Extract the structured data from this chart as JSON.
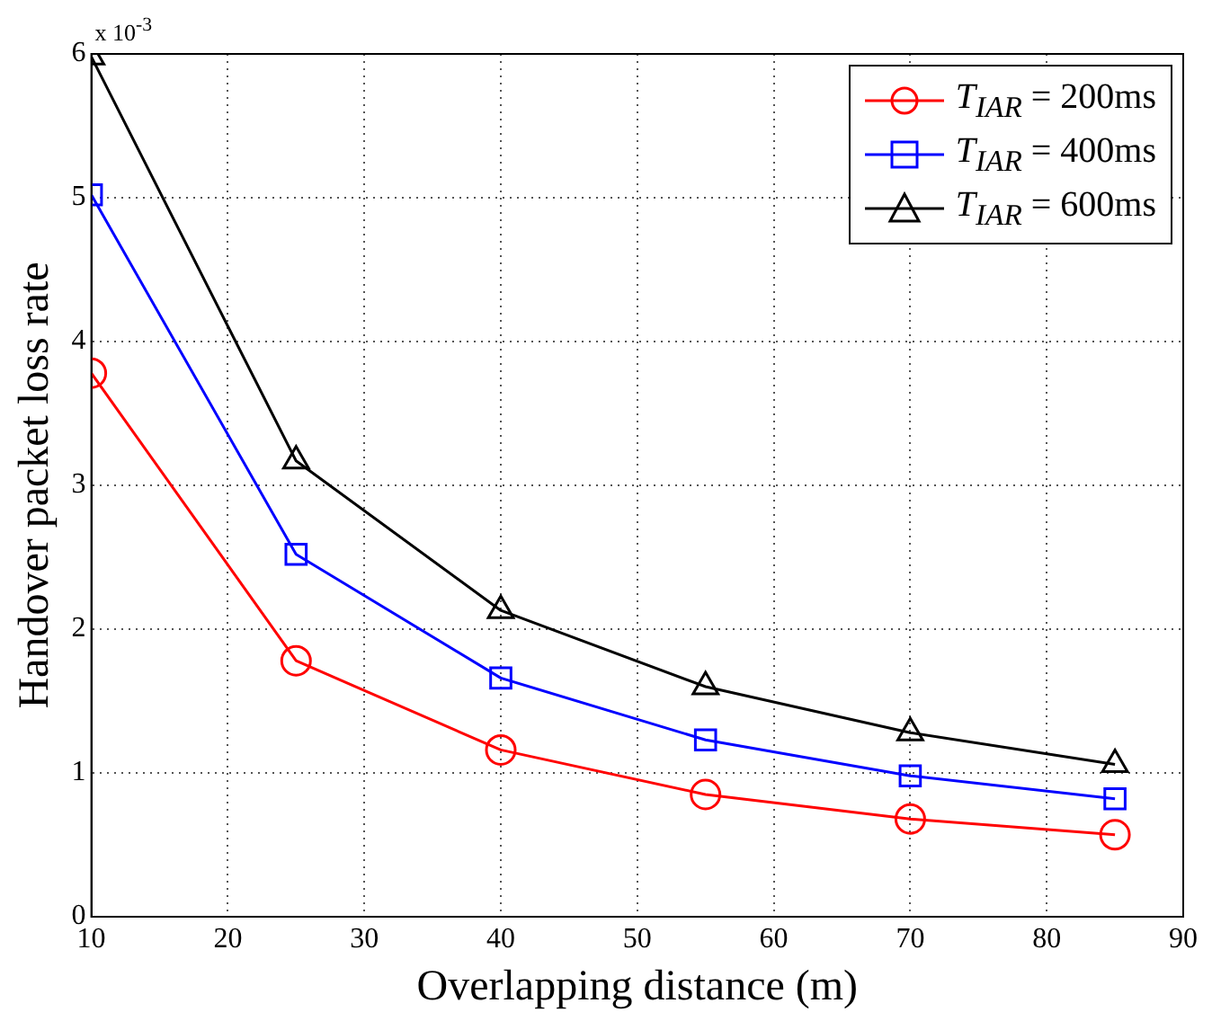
{
  "chart_data": {
    "type": "line",
    "xlabel": "Overlapping distance (m)",
    "ylabel": "Handover packet loss rate",
    "x": [
      10,
      25,
      40,
      55,
      70,
      85
    ],
    "series": [
      {
        "name": "T$_{IAR}$ = 200ms",
        "color": "#ff0000",
        "marker": "circle",
        "values": [
          3.78,
          1.78,
          1.16,
          0.85,
          0.68,
          0.57
        ]
      },
      {
        "name": "T$_{IAR}$ = 400ms",
        "color": "#0000ff",
        "marker": "square",
        "values": [
          5.02,
          2.52,
          1.66,
          1.23,
          0.98,
          0.82
        ]
      },
      {
        "name": "T$_{IAR}$ = 600ms",
        "color": "#000000",
        "marker": "triangle",
        "values": [
          5.98,
          3.17,
          2.13,
          1.6,
          1.28,
          1.06
        ]
      }
    ],
    "xlim": [
      10,
      90
    ],
    "xticks": [
      10,
      20,
      30,
      40,
      50,
      60,
      70,
      80,
      90
    ],
    "ylim": [
      0,
      6
    ],
    "yticks": [
      0,
      1,
      2,
      3,
      4,
      5,
      6
    ],
    "annotations": [
      "x 10$^{-3}$"
    ],
    "grid": true,
    "legend": "top right",
    "line_style": "solid"
  }
}
